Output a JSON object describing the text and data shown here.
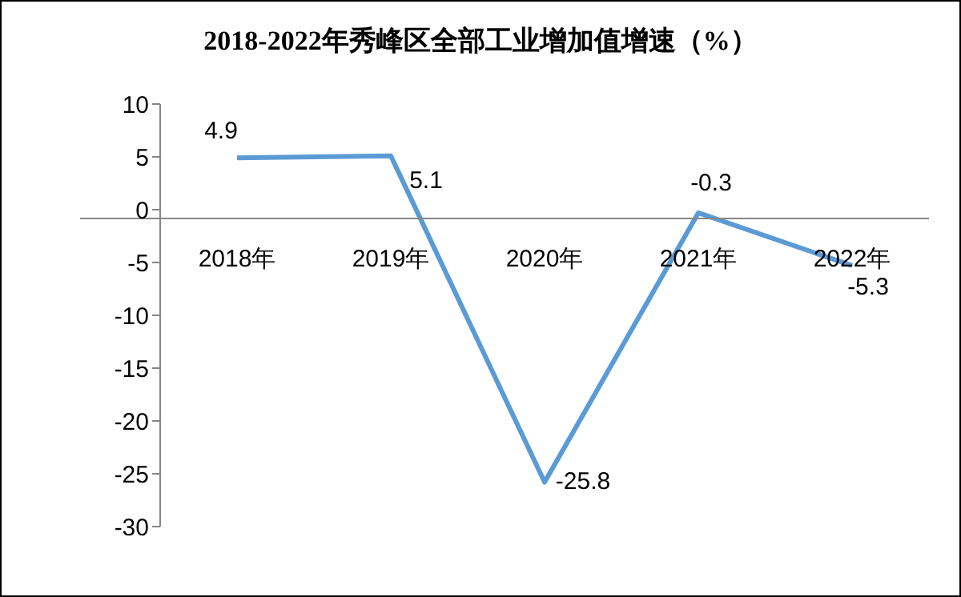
{
  "chart_data": {
    "type": "line",
    "title": "2018-2022年秀峰区全部工业增加值增速（%）",
    "categories": [
      "2018年",
      "2019年",
      "2020年",
      "2021年",
      "2022年"
    ],
    "series": [
      {
        "color": "#5b9bd5",
        "values": [
          4.9,
          5.1,
          -25.8,
          -0.3,
          -5.3
        ]
      }
    ],
    "ylim": [
      -30,
      10
    ],
    "yticks": [
      -30,
      -25,
      -20,
      -15,
      -10,
      -5,
      0,
      5,
      10
    ],
    "marker": "none",
    "data_labels": true
  }
}
